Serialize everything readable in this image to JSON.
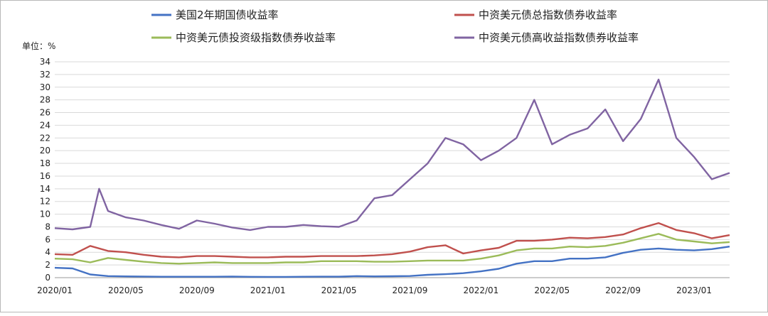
{
  "chart_data": {
    "type": "line",
    "unit_label": "单位：%",
    "ylim": [
      0,
      34
    ],
    "y_ticks": [
      0,
      2,
      4,
      6,
      8,
      10,
      12,
      14,
      16,
      18,
      20,
      22,
      24,
      26,
      28,
      30,
      32,
      34
    ],
    "x_ticks": [
      "2020/01",
      "2020/05",
      "2020/09",
      "2021/01",
      "2021/05",
      "2021/09",
      "2022/01",
      "2022/05",
      "2022/09",
      "2023/01"
    ],
    "grid": "horizontal",
    "legend_position": "top",
    "series": [
      {
        "name": "美国2年期国债收益率",
        "color": "#4472C4",
        "x": [
          "2020/01",
          "2020/02",
          "2020/03",
          "2020/04",
          "2020/05",
          "2020/06",
          "2020/07",
          "2020/08",
          "2020/09",
          "2020/10",
          "2020/11",
          "2020/12",
          "2021/01",
          "2021/02",
          "2021/03",
          "2021/04",
          "2021/05",
          "2021/06",
          "2021/07",
          "2021/08",
          "2021/09",
          "2021/10",
          "2021/11",
          "2021/12",
          "2022/01",
          "2022/02",
          "2022/03",
          "2022/04",
          "2022/05",
          "2022/06",
          "2022/07",
          "2022/08",
          "2022/09",
          "2022/10",
          "2022/11",
          "2022/12",
          "2023/01",
          "2023/02",
          "2023/03"
        ],
        "values": [
          1.55,
          1.45,
          0.5,
          0.25,
          0.2,
          0.18,
          0.15,
          0.14,
          0.14,
          0.15,
          0.18,
          0.13,
          0.12,
          0.12,
          0.15,
          0.16,
          0.16,
          0.25,
          0.2,
          0.22,
          0.26,
          0.45,
          0.55,
          0.7,
          1.0,
          1.4,
          2.2,
          2.6,
          2.6,
          3.0,
          3.0,
          3.2,
          3.9,
          4.4,
          4.6,
          4.4,
          4.3,
          4.5,
          4.9
        ]
      },
      {
        "name": "中资美元债总指数债券收益率",
        "color": "#C0504D",
        "x": [
          "2020/01",
          "2020/02",
          "2020/03",
          "2020/04",
          "2020/05",
          "2020/06",
          "2020/07",
          "2020/08",
          "2020/09",
          "2020/10",
          "2020/11",
          "2020/12",
          "2021/01",
          "2021/02",
          "2021/03",
          "2021/04",
          "2021/05",
          "2021/06",
          "2021/07",
          "2021/08",
          "2021/09",
          "2021/10",
          "2021/11",
          "2021/12",
          "2022/01",
          "2022/02",
          "2022/03",
          "2022/04",
          "2022/05",
          "2022/06",
          "2022/07",
          "2022/08",
          "2022/09",
          "2022/10",
          "2022/11",
          "2022/12",
          "2023/01",
          "2023/02",
          "2023/03"
        ],
        "values": [
          3.7,
          3.6,
          5.0,
          4.2,
          4.0,
          3.6,
          3.3,
          3.2,
          3.4,
          3.4,
          3.3,
          3.2,
          3.2,
          3.3,
          3.3,
          3.4,
          3.4,
          3.4,
          3.5,
          3.7,
          4.1,
          4.8,
          5.1,
          3.8,
          4.3,
          4.7,
          5.8,
          5.8,
          6.0,
          6.3,
          6.2,
          6.4,
          6.8,
          7.8,
          8.6,
          7.5,
          7.0,
          6.2,
          6.7
        ]
      },
      {
        "name": "中资美元债投资级指数债券收益率",
        "color": "#9BBB59",
        "x": [
          "2020/01",
          "2020/02",
          "2020/03",
          "2020/04",
          "2020/05",
          "2020/06",
          "2020/07",
          "2020/08",
          "2020/09",
          "2020/10",
          "2020/11",
          "2020/12",
          "2021/01",
          "2021/02",
          "2021/03",
          "2021/04",
          "2021/05",
          "2021/06",
          "2021/07",
          "2021/08",
          "2021/09",
          "2021/10",
          "2021/11",
          "2021/12",
          "2022/01",
          "2022/02",
          "2022/03",
          "2022/04",
          "2022/05",
          "2022/06",
          "2022/07",
          "2022/08",
          "2022/09",
          "2022/10",
          "2022/11",
          "2022/12",
          "2023/01",
          "2023/02",
          "2023/03"
        ],
        "values": [
          3.0,
          2.9,
          2.4,
          3.1,
          2.8,
          2.5,
          2.3,
          2.2,
          2.3,
          2.4,
          2.3,
          2.3,
          2.3,
          2.4,
          2.4,
          2.6,
          2.6,
          2.6,
          2.5,
          2.5,
          2.6,
          2.7,
          2.7,
          2.7,
          3.0,
          3.5,
          4.3,
          4.6,
          4.6,
          4.9,
          4.8,
          5.0,
          5.5,
          6.2,
          6.9,
          6.0,
          5.7,
          5.4,
          5.6
        ]
      },
      {
        "name": "中资美元债高收益指数债券收益率",
        "color": "#8064A2",
        "x": [
          "2020/01",
          "2020/02",
          "2020/03",
          "2020/03",
          "2020/04",
          "2020/05",
          "2020/06",
          "2020/07",
          "2020/08",
          "2020/09",
          "2020/10",
          "2020/11",
          "2020/12",
          "2021/01",
          "2021/02",
          "2021/03",
          "2021/04",
          "2021/05",
          "2021/06",
          "2021/07",
          "2021/08",
          "2021/09",
          "2021/10",
          "2021/11",
          "2021/12",
          "2022/01",
          "2022/02",
          "2022/03",
          "2022/04",
          "2022/05",
          "2022/06",
          "2022/07",
          "2022/08",
          "2022/09",
          "2022/10",
          "2022/11",
          "2022/12",
          "2023/01",
          "2023/02",
          "2023/03"
        ],
        "values": [
          7.8,
          7.6,
          8.0,
          14.0,
          10.5,
          9.5,
          9.0,
          8.3,
          7.7,
          9.0,
          8.5,
          7.9,
          7.5,
          8.0,
          8.0,
          8.3,
          8.1,
          8.0,
          9.0,
          12.5,
          13.0,
          15.5,
          18.0,
          22.0,
          21.0,
          18.5,
          20.0,
          22.0,
          28.0,
          21.0,
          22.5,
          23.5,
          26.5,
          21.5,
          25.0,
          31.2,
          22.0,
          19.0,
          15.5,
          16.5
        ]
      }
    ]
  }
}
